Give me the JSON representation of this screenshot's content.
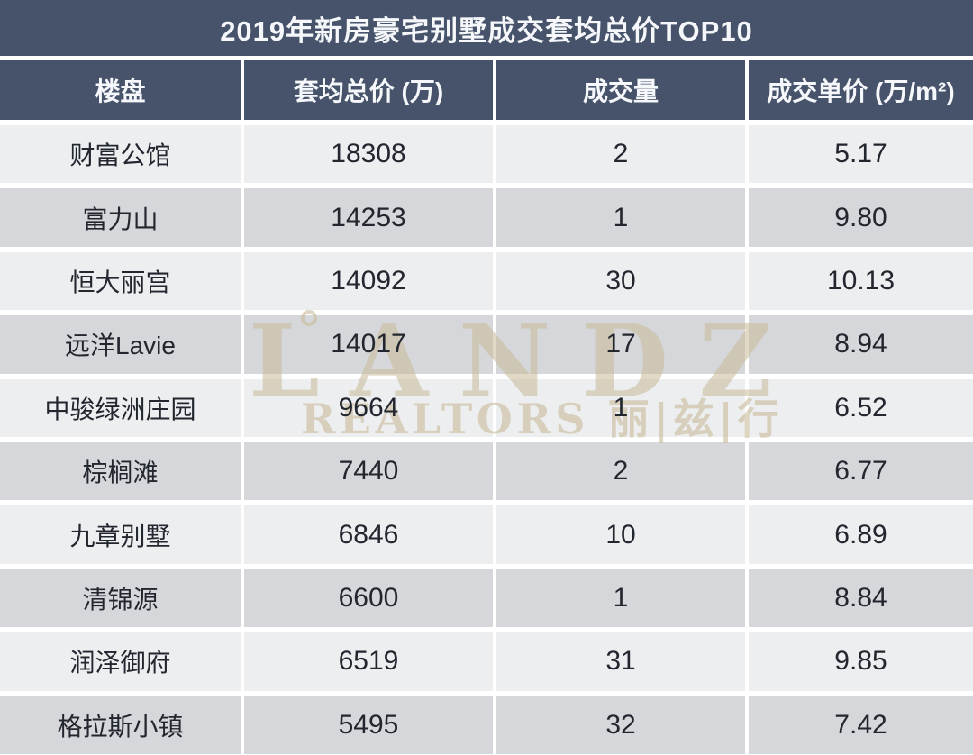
{
  "title": "2019年新房豪宅别墅成交套均总价TOP10",
  "colors": {
    "header_slate": "#46536a",
    "row_light": "#eceef0",
    "row_dark": "#d5d7da",
    "header_text": "#f5f7fa",
    "cell_text": "#22262e",
    "watermark_tan": "#c9ba97"
  },
  "watermark": {
    "main": "LANDZ",
    "ring_icon": "ring",
    "sub": "REALTORS 丽|兹|行"
  },
  "table": {
    "headers": [
      "楼盘",
      "套均总价 (万)",
      "成交量",
      "成交单价 (万/m²)"
    ],
    "rows": [
      {
        "name": "财富公馆",
        "avg_total": "18308",
        "volume": "2",
        "unit_price": "5.17"
      },
      {
        "name": "富力山",
        "avg_total": "14253",
        "volume": "1",
        "unit_price": "9.80"
      },
      {
        "name": "恒大丽宫",
        "avg_total": "14092",
        "volume": "30",
        "unit_price": "10.13"
      },
      {
        "name": "远洋Lavie",
        "avg_total": "14017",
        "volume": "17",
        "unit_price": "8.94"
      },
      {
        "name": "中骏绿洲庄园",
        "avg_total": "9664",
        "volume": "1",
        "unit_price": "6.52"
      },
      {
        "name": "棕榈滩",
        "avg_total": "7440",
        "volume": "2",
        "unit_price": "6.77"
      },
      {
        "name": "九章别墅",
        "avg_total": "6846",
        "volume": "10",
        "unit_price": "6.89"
      },
      {
        "name": "清锦源",
        "avg_total": "6600",
        "volume": "1",
        "unit_price": "8.84"
      },
      {
        "name": "润泽御府",
        "avg_total": "6519",
        "volume": "31",
        "unit_price": "9.85"
      },
      {
        "name": "格拉斯小镇",
        "avg_total": "5495",
        "volume": "32",
        "unit_price": "7.42"
      }
    ]
  },
  "chart_data": {
    "type": "table",
    "title": "2019年新房豪宅别墅成交套均总价TOP10",
    "columns": [
      "楼盘",
      "套均总价 (万)",
      "成交量",
      "成交单价 (万/m²)"
    ],
    "rows": [
      [
        "财富公馆",
        18308,
        2,
        5.17
      ],
      [
        "富力山",
        14253,
        1,
        9.8
      ],
      [
        "恒大丽宫",
        14092,
        30,
        10.13
      ],
      [
        "远洋Lavie",
        14017,
        17,
        8.94
      ],
      [
        "中骏绿洲庄园",
        9664,
        1,
        6.52
      ],
      [
        "棕榈滩",
        7440,
        2,
        6.77
      ],
      [
        "九章别墅",
        6846,
        10,
        6.89
      ],
      [
        "清锦源",
        6600,
        1,
        8.84
      ],
      [
        "润泽御府",
        6519,
        31,
        9.85
      ],
      [
        "格拉斯小镇",
        5495,
        32,
        7.42
      ]
    ]
  }
}
